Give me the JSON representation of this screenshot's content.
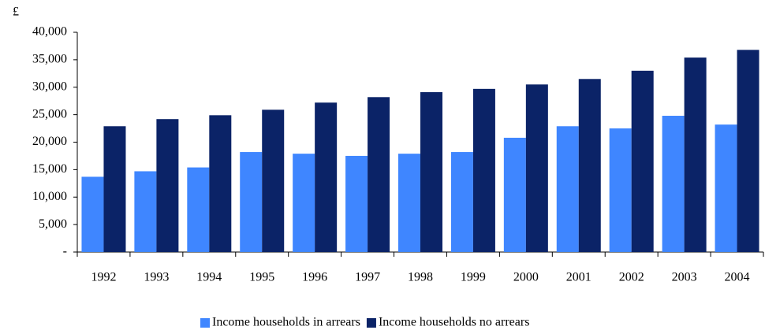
{
  "chart_data": {
    "type": "bar",
    "y_label": "£",
    "categories": [
      "1992",
      "1993",
      "1994",
      "1995",
      "1996",
      "1997",
      "1998",
      "1999",
      "2000",
      "2001",
      "2002",
      "2003",
      "2004"
    ],
    "series": [
      {
        "name": "Income households in arrears",
        "color": "#3f86ff",
        "values": [
          13700,
          14700,
          15400,
          18200,
          17900,
          17500,
          17900,
          18200,
          20800,
          22900,
          22500,
          24800,
          23200
        ]
      },
      {
        "name": "Income households no arrears",
        "color": "#0b2367",
        "values": [
          22900,
          24200,
          24900,
          25900,
          27200,
          28200,
          29100,
          29700,
          30500,
          31500,
          33000,
          35400,
          36800
        ]
      }
    ],
    "ylim": [
      0,
      40000
    ],
    "yticks": [
      {
        "value": 0,
        "label": "-"
      },
      {
        "value": 5000,
        "label": "5,000"
      },
      {
        "value": 10000,
        "label": "10,000"
      },
      {
        "value": 15000,
        "label": "15,000"
      },
      {
        "value": 20000,
        "label": "20,000"
      },
      {
        "value": 25000,
        "label": "25,000"
      },
      {
        "value": 30000,
        "label": "30,000"
      },
      {
        "value": 35000,
        "label": "35,000"
      },
      {
        "value": 40000,
        "label": "40,000"
      }
    ],
    "grid": false
  }
}
